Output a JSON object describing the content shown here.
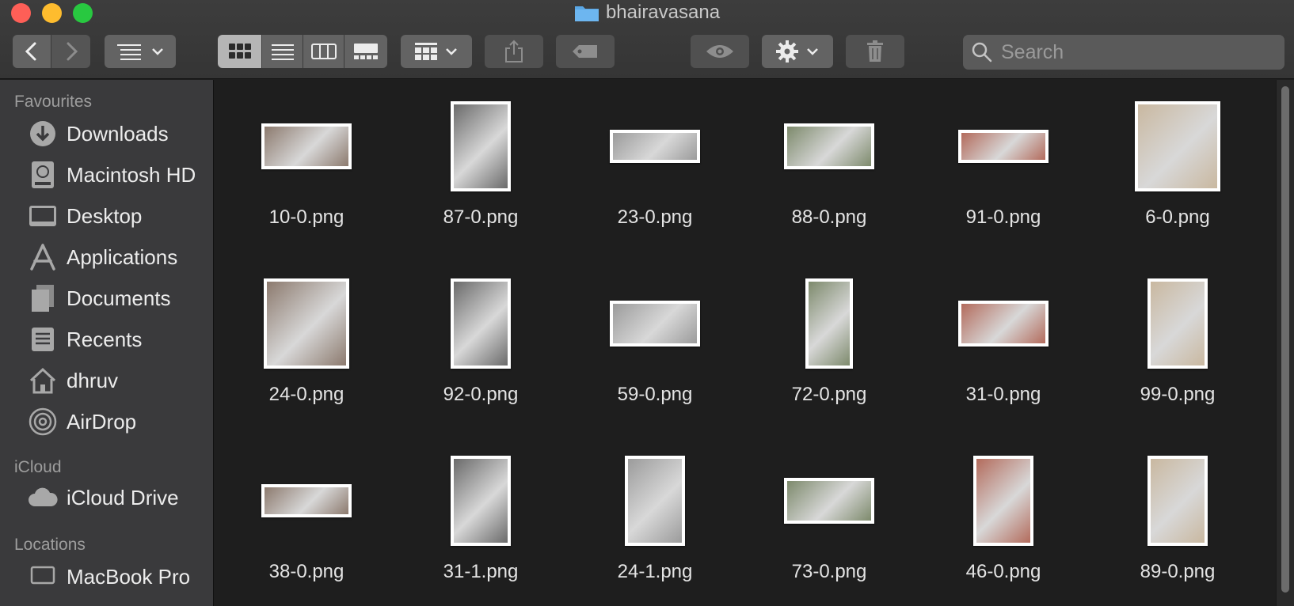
{
  "window": {
    "title": "bhairavasana"
  },
  "toolbar": {
    "back_icon": "chevron-left-icon",
    "forward_icon": "chevron-right-icon",
    "group_icon": "list-options-icon",
    "view_modes": [
      "icon-view",
      "list-view",
      "column-view",
      "gallery-view"
    ],
    "active_view": "icon-view",
    "share_icon": "share-icon",
    "tag_icon": "tag-icon",
    "quicklook_icon": "eye-icon",
    "action_icon": "gear-icon",
    "trash_icon": "trash-icon"
  },
  "search": {
    "placeholder": "Search",
    "value": ""
  },
  "sidebar": {
    "sections": [
      {
        "title": "Favourites",
        "items": [
          {
            "label": "Downloads",
            "icon": "download-icon"
          },
          {
            "label": "Macintosh HD",
            "icon": "harddrive-icon"
          },
          {
            "label": "Desktop",
            "icon": "desktop-icon"
          },
          {
            "label": "Applications",
            "icon": "applications-icon"
          },
          {
            "label": "Documents",
            "icon": "documents-icon"
          },
          {
            "label": "Recents",
            "icon": "recents-icon"
          },
          {
            "label": "dhruv",
            "icon": "home-icon"
          },
          {
            "label": "AirDrop",
            "icon": "airdrop-icon"
          }
        ]
      },
      {
        "title": "iCloud",
        "items": [
          {
            "label": "iCloud Drive",
            "icon": "cloud-icon"
          }
        ]
      },
      {
        "title": "Locations",
        "items": [
          {
            "label": "MacBook Pro",
            "icon": "laptop-icon"
          }
        ]
      }
    ]
  },
  "files": [
    {
      "name": "10-0.png",
      "orientation": "landscape"
    },
    {
      "name": "87-0.png",
      "orientation": "portrait"
    },
    {
      "name": "23-0.png",
      "orientation": "wide"
    },
    {
      "name": "88-0.png",
      "orientation": "landscape"
    },
    {
      "name": "91-0.png",
      "orientation": "wide"
    },
    {
      "name": "6-0.png",
      "orientation": "square"
    },
    {
      "name": "24-0.png",
      "orientation": "square"
    },
    {
      "name": "92-0.png",
      "orientation": "portrait"
    },
    {
      "name": "59-0.png",
      "orientation": "landscape"
    },
    {
      "name": "72-0.png",
      "orientation": "tall"
    },
    {
      "name": "31-0.png",
      "orientation": "landscape"
    },
    {
      "name": "99-0.png",
      "orientation": "portrait"
    },
    {
      "name": "38-0.png",
      "orientation": "wide"
    },
    {
      "name": "31-1.png",
      "orientation": "portrait"
    },
    {
      "name": "24-1.png",
      "orientation": "portrait"
    },
    {
      "name": "73-0.png",
      "orientation": "landscape"
    },
    {
      "name": "46-0.png",
      "orientation": "portrait"
    },
    {
      "name": "89-0.png",
      "orientation": "portrait"
    }
  ],
  "colors": {
    "close": "#fe5f57",
    "minimize": "#febc2e",
    "maximize": "#28c840",
    "folder": "#5aa7e6"
  }
}
